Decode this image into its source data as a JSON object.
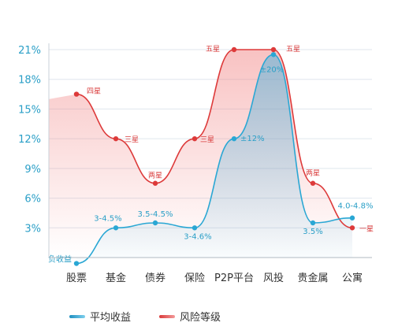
{
  "chart_data": {
    "type": "line",
    "title": "",
    "xlabel": "",
    "ylabel": "",
    "ylim": [
      0,
      21
    ],
    "y_ticks": [
      "21%",
      "18%",
      "15%",
      "12%",
      "9%",
      "6%",
      "3%"
    ],
    "y_tick_values": [
      21,
      18,
      15,
      12,
      9,
      6,
      3
    ],
    "categories": [
      "股票",
      "基金",
      "债券",
      "保险",
      "P2P平台",
      "风投",
      "贵金属",
      "公寓"
    ],
    "grid": true,
    "legend_position": "bottom-left",
    "series": [
      {
        "name": "平均收益",
        "color": "#2aa7d4",
        "values": [
          -0.6,
          3.0,
          3.5,
          3.0,
          12.0,
          20.5,
          3.5,
          4.0
        ],
        "labels": [
          "负收益",
          "3-4.5%",
          "3.5-4.5%",
          "3-4.6%",
          "±12%",
          "±20%",
          "3.5%",
          "4.0-4.8%"
        ]
      },
      {
        "name": "风险等级",
        "color": "#dd3a3a",
        "values": [
          16.5,
          12.0,
          7.5,
          12.0,
          21.0,
          21.0,
          7.5,
          3.0
        ],
        "labels": [
          "四星",
          "三星",
          "两星",
          "三星",
          "五星",
          "五星",
          "两星",
          "一星"
        ]
      }
    ]
  }
}
